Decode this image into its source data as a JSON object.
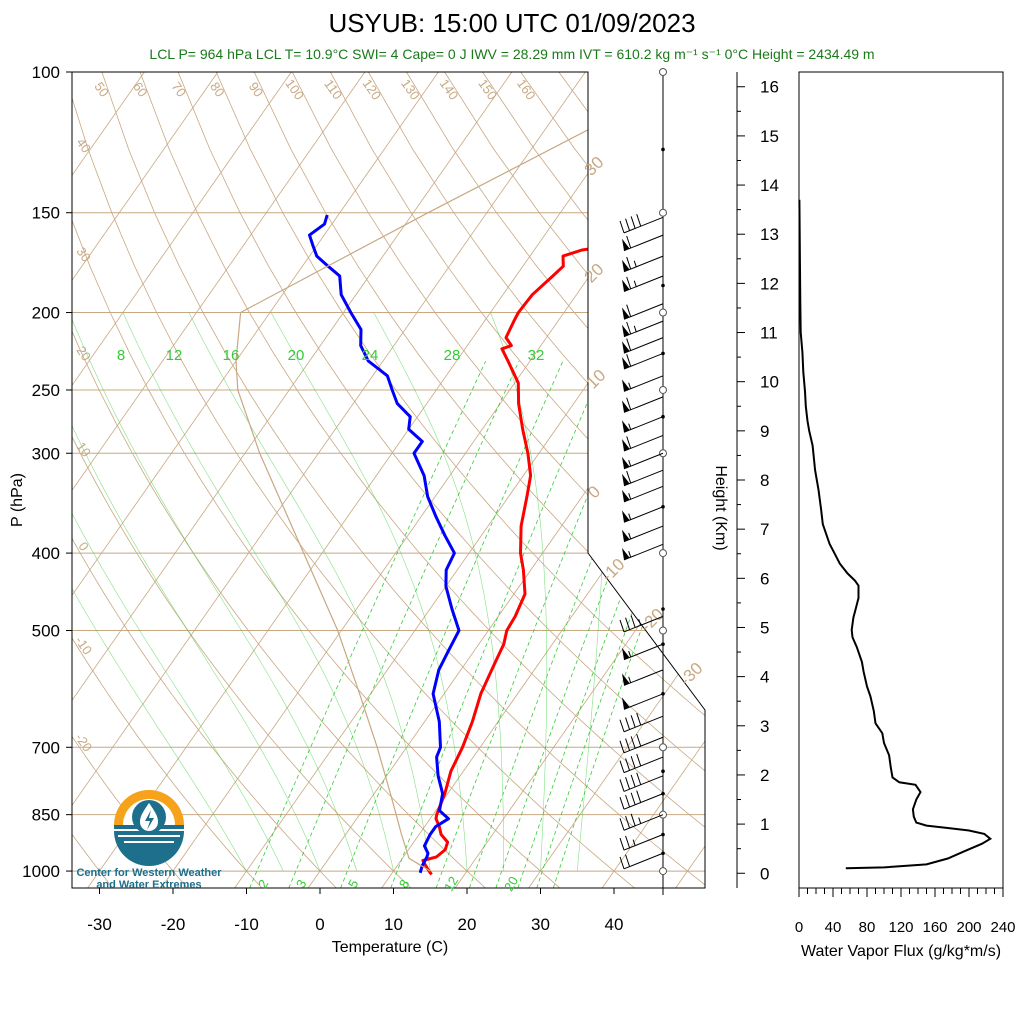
{
  "title": "USYUB: 15:00 UTC 01/09/2023",
  "subtitle": "LCL P= 964 hPa  LCL T= 10.9°C  SWI= 4  Cape= 0 J  IWV = 28.29 mm  IVT = 610.2 kg m⁻¹ s⁻¹  0°C Height = 2434.49 m",
  "logo": {
    "line1": "Center for Western Weather",
    "line2": "and Water Extremes"
  },
  "colors": {
    "temperature": "#ff0000",
    "dewpoint": "#0000ff",
    "dry_adiabat": "#c8a882",
    "mixing_ratio": "#33cc33",
    "subtitle": "#1a7a1a",
    "theta_label": "#c8a882"
  },
  "chart_data": [
    {
      "type": "line",
      "name": "skew-t",
      "xlabel": "Temperature (C)",
      "ylabel": "P (hPa)",
      "x_ticks": [
        -30,
        -20,
        -10,
        0,
        10,
        20,
        30,
        40
      ],
      "y_ticks": [
        100,
        150,
        200,
        250,
        300,
        400,
        500,
        700,
        850,
        1000
      ],
      "xlim": [
        -34,
        52
      ],
      "ylim": [
        1050,
        100
      ],
      "log_pressure": true,
      "grid": true,
      "theta_labels_top": [
        50,
        60,
        70,
        80,
        90,
        100,
        110,
        120,
        130,
        140,
        150,
        160
      ],
      "theta_labels_left": [
        40,
        30,
        20,
        10,
        0,
        -10,
        -20
      ],
      "theta_e_labels_right": [
        30,
        20,
        10,
        0,
        -10,
        -20,
        -30
      ],
      "mixing_ratio_labels_top": [
        8,
        12,
        16,
        20,
        24,
        28,
        32
      ],
      "mixing_ratio_labels_bottom": [
        2,
        3,
        5,
        8,
        12,
        20
      ],
      "series": [
        {
          "key": "temperature",
          "points": [
            [
              1010,
              15.5
            ],
            [
              990,
              14.2
            ],
            [
              970,
              13.0
            ],
            [
              960,
              14.5
            ],
            [
              940,
              15.0
            ],
            [
              920,
              14.6
            ],
            [
              900,
              13.0
            ],
            [
              880,
              12.0
            ],
            [
              860,
              10.8
            ],
            [
              850,
              10.5
            ],
            [
              800,
              9.6
            ],
            [
              750,
              8.3
            ],
            [
              700,
              7.6
            ],
            [
              650,
              6.5
            ],
            [
              600,
              5.0
            ],
            [
              550,
              4.0
            ],
            [
              520,
              3.4
            ],
            [
              500,
              2.5
            ],
            [
              480,
              2.3
            ],
            [
              450,
              1.5
            ],
            [
              420,
              -1.0
            ],
            [
              400,
              -3.0
            ],
            [
              370,
              -5.5
            ],
            [
              340,
              -7.5
            ],
            [
              320,
              -9.0
            ],
            [
              300,
              -11.5
            ],
            [
              280,
              -14.5
            ],
            [
              260,
              -17.5
            ],
            [
              245,
              -19.5
            ],
            [
              230,
              -23.0
            ],
            [
              222,
              -25.0
            ],
            [
              220,
              -24.0
            ],
            [
              215,
              -25.5
            ],
            [
              205,
              -26.0
            ],
            [
              200,
              -26.2
            ],
            [
              190,
              -26.0
            ],
            [
              180,
              -25.0
            ],
            [
              175,
              -24.5
            ],
            [
              170,
              -25.5
            ],
            [
              167,
              -23.5
            ],
            [
              165,
              -20.0
            ],
            [
              162,
              -16.0
            ],
            [
              158,
              -13.0
            ],
            [
              155,
              -11.5
            ],
            [
              151,
              -8.5
            ]
          ]
        },
        {
          "key": "dewpoint",
          "points": [
            [
              1005,
              13.8
            ],
            [
              985,
              13.4
            ],
            [
              960,
              13.2
            ],
            [
              950,
              13.0
            ],
            [
              930,
              11.8
            ],
            [
              900,
              11.5
            ],
            [
              880,
              11.5
            ],
            [
              860,
              12.5
            ],
            [
              840,
              10.5
            ],
            [
              800,
              9.3
            ],
            [
              760,
              7.0
            ],
            [
              720,
              5.0
            ],
            [
              700,
              4.6
            ],
            [
              650,
              2.0
            ],
            [
              600,
              -1.5
            ],
            [
              560,
              -3.0
            ],
            [
              530,
              -3.5
            ],
            [
              500,
              -4.0
            ],
            [
              470,
              -7.0
            ],
            [
              440,
              -10.0
            ],
            [
              420,
              -11.5
            ],
            [
              400,
              -12.0
            ],
            [
              380,
              -15.0
            ],
            [
              360,
              -18.0
            ],
            [
              340,
              -21.0
            ],
            [
              320,
              -23.5
            ],
            [
              300,
              -27.0
            ],
            [
              290,
              -27.0
            ],
            [
              280,
              -30.0
            ],
            [
              270,
              -31.0
            ],
            [
              260,
              -34.0
            ],
            [
              250,
              -36.0
            ],
            [
              240,
              -38.0
            ],
            [
              230,
              -42.0
            ],
            [
              220,
              -44.5
            ],
            [
              210,
              -46.0
            ],
            [
              200,
              -49.0
            ],
            [
              190,
              -52.0
            ],
            [
              180,
              -54.0
            ],
            [
              175,
              -56.5
            ],
            [
              170,
              -59.0
            ],
            [
              165,
              -60.5
            ],
            [
              160,
              -62.0
            ],
            [
              155,
              -61.0
            ],
            [
              151,
              -61.5
            ]
          ]
        },
        {
          "key": "parcel",
          "points": [
            [
              1000,
              15.0
            ],
            [
              964,
              10.9
            ],
            [
              900,
              7.6
            ],
            [
              850,
              5.0
            ],
            [
              800,
              2.2
            ],
            [
              700,
              -4.0
            ],
            [
              600,
              -11.5
            ],
            [
              500,
              -20.5
            ],
            [
              400,
              -32.5
            ],
            [
              300,
              -48.0
            ],
            [
              250,
              -57.0
            ],
            [
              230,
              -60.0
            ],
            [
              200,
              -64.0
            ],
            [
              150,
              -48.0
            ],
            [
              110,
              -30.0
            ]
          ]
        }
      ],
      "wind_profile": [
        {
          "p": 152,
          "speed": 40
        },
        {
          "p": 160,
          "speed": 60
        },
        {
          "p": 170,
          "speed": 65
        },
        {
          "p": 180,
          "speed": 65
        },
        {
          "p": 195,
          "speed": 60
        },
        {
          "p": 205,
          "speed": 65
        },
        {
          "p": 215,
          "speed": 60
        },
        {
          "p": 225,
          "speed": 60
        },
        {
          "p": 240,
          "speed": 55
        },
        {
          "p": 255,
          "speed": 60
        },
        {
          "p": 270,
          "speed": 55
        },
        {
          "p": 285,
          "speed": 60
        },
        {
          "p": 300,
          "speed": 55
        },
        {
          "p": 315,
          "speed": 60
        },
        {
          "p": 330,
          "speed": 55
        },
        {
          "p": 350,
          "speed": 55
        },
        {
          "p": 370,
          "speed": 55
        },
        {
          "p": 390,
          "speed": 55
        },
        {
          "p": 480,
          "speed": 35
        },
        {
          "p": 520,
          "speed": 55
        },
        {
          "p": 560,
          "speed": 55
        },
        {
          "p": 600,
          "speed": 50
        },
        {
          "p": 640,
          "speed": 40
        },
        {
          "p": 680,
          "speed": 40
        },
        {
          "p": 720,
          "speed": 40
        },
        {
          "p": 760,
          "speed": 40
        },
        {
          "p": 800,
          "speed": 40
        },
        {
          "p": 850,
          "speed": 35
        },
        {
          "p": 900,
          "speed": 25
        },
        {
          "p": 950,
          "speed": 20
        }
      ]
    },
    {
      "type": "line",
      "name": "water-vapor-flux",
      "xlabel": "Water Vapor Flux (g/kg*m/s)",
      "ylabel": "Height (Km)",
      "x_ticks": [
        0,
        40,
        80,
        120,
        160,
        200,
        240
      ],
      "y_ticks": [
        0,
        1,
        2,
        3,
        4,
        5,
        6,
        7,
        8,
        9,
        10,
        11,
        12,
        13,
        14,
        15,
        16
      ],
      "xlim": [
        0,
        240
      ],
      "ylim": [
        -0.3,
        16.3
      ],
      "points": [
        [
          55,
          0.1
        ],
        [
          100,
          0.12
        ],
        [
          150,
          0.18
        ],
        [
          175,
          0.3
        ],
        [
          195,
          0.45
        ],
        [
          215,
          0.6
        ],
        [
          225,
          0.7
        ],
        [
          218,
          0.8
        ],
        [
          200,
          0.87
        ],
        [
          175,
          0.92
        ],
        [
          150,
          0.97
        ],
        [
          138,
          1.03
        ],
        [
          135,
          1.15
        ],
        [
          134,
          1.3
        ],
        [
          138,
          1.5
        ],
        [
          143,
          1.65
        ],
        [
          137,
          1.8
        ],
        [
          118,
          1.85
        ],
        [
          110,
          1.95
        ],
        [
          108,
          2.15
        ],
        [
          106,
          2.4
        ],
        [
          100,
          2.65
        ],
        [
          98,
          2.85
        ],
        [
          90,
          3.05
        ],
        [
          88,
          3.3
        ],
        [
          84,
          3.6
        ],
        [
          80,
          3.8
        ],
        [
          76,
          4.1
        ],
        [
          74,
          4.3
        ],
        [
          68,
          4.6
        ],
        [
          63,
          4.8
        ],
        [
          62,
          4.95
        ],
        [
          64,
          5.2
        ],
        [
          67,
          5.4
        ],
        [
          70,
          5.6
        ],
        [
          70,
          5.85
        ],
        [
          66,
          5.95
        ],
        [
          57,
          6.1
        ],
        [
          48,
          6.3
        ],
        [
          42,
          6.5
        ],
        [
          36,
          6.7
        ],
        [
          32,
          6.9
        ],
        [
          28,
          7.1
        ],
        [
          26,
          7.4
        ],
        [
          23,
          7.8
        ],
        [
          19,
          8.2
        ],
        [
          16,
          8.7
        ],
        [
          12,
          9.0
        ],
        [
          10,
          9.2
        ],
        [
          8,
          9.5
        ],
        [
          7,
          9.8
        ],
        [
          5,
          10.2
        ],
        [
          4,
          10.6
        ],
        [
          2,
          11.0
        ],
        [
          1.5,
          11.6
        ],
        [
          1,
          12.5
        ],
        [
          0.5,
          13.7
        ]
      ]
    }
  ]
}
